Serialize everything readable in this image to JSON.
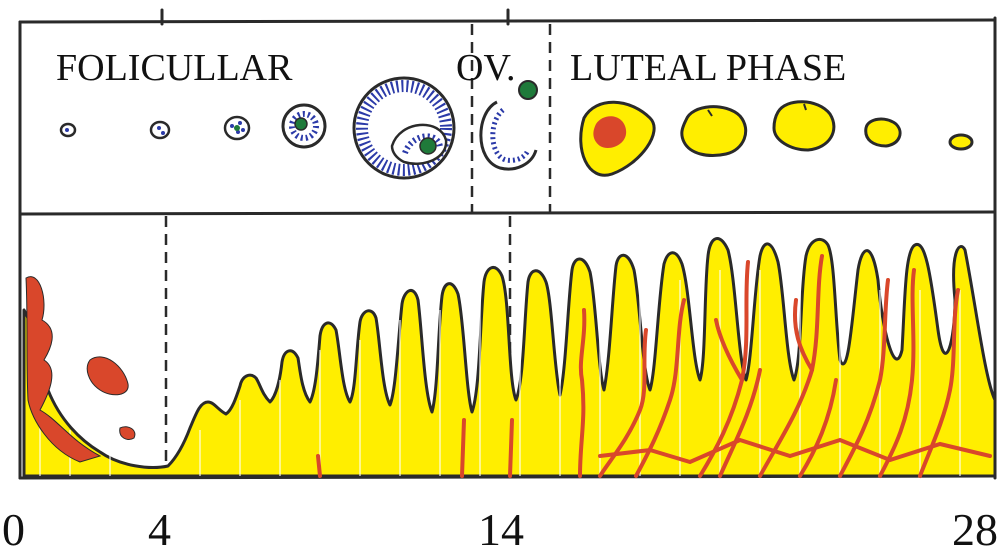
{
  "phases": {
    "follicular": "FOLICULLAR",
    "ovulation": "OV.",
    "luteal": "LUTEAL PHASE"
  },
  "days": [
    "0",
    "4",
    "14",
    "28"
  ],
  "colors": {
    "outline": "#2a2a2a",
    "granulosa": "#2b3aa8",
    "oocyte": "#1f7a3a",
    "corpus_luteum": "#ffee00",
    "blood": "#d9472b",
    "endometrium": "#ffee00",
    "background": "#ffffff"
  },
  "ovarian_stages": [
    "primordial-follicle",
    "primary-follicle",
    "secondary-follicle",
    "early-antral-follicle",
    "graafian-follicle",
    "ruptured-follicle",
    "corpus-hemorrhagicum",
    "corpus-luteum",
    "mature-corpus-luteum",
    "regressing-corpus-luteum",
    "corpus-albicans"
  ]
}
